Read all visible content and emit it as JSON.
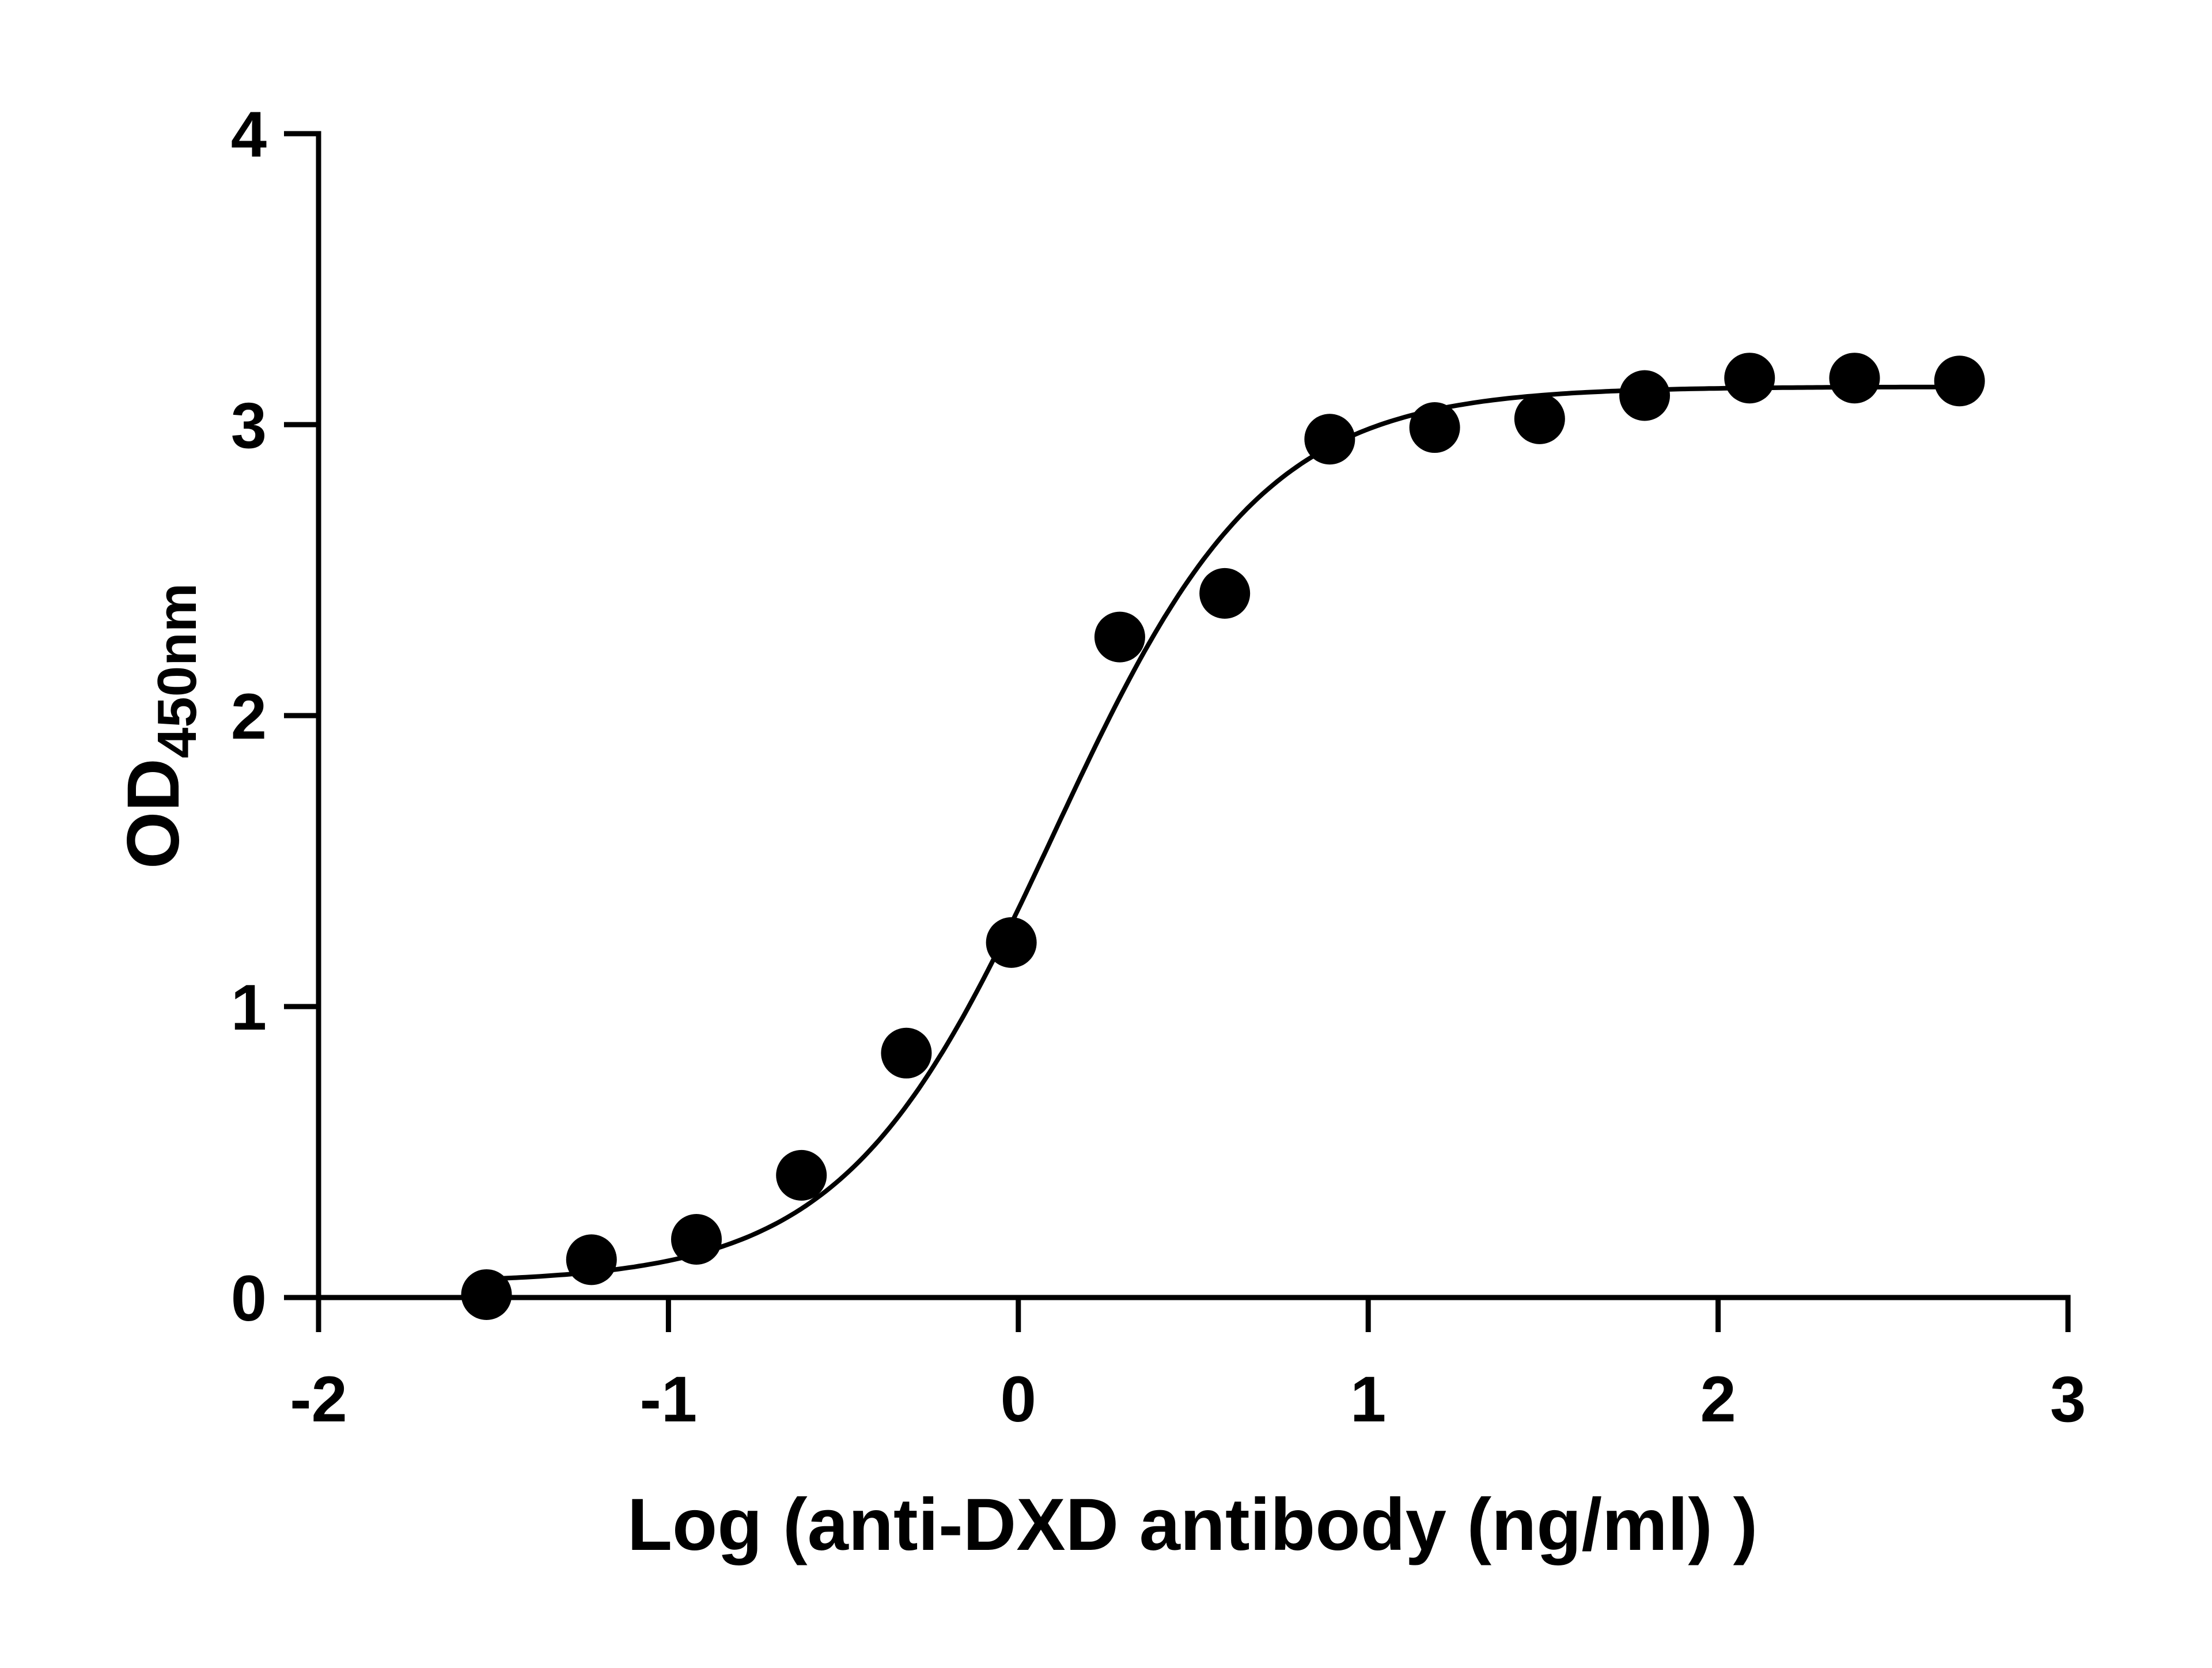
{
  "chart_data": {
    "type": "scatter",
    "title": "",
    "xlabel": "Log (anti-DXD antibody (ng/ml) )",
    "ylabel_main": "OD",
    "ylabel_sub": "450nm",
    "xlim": [
      -2,
      3
    ],
    "ylim": [
      0,
      4
    ],
    "x_ticks": [
      "-2",
      "-1",
      "0",
      "1",
      "2",
      "3"
    ],
    "y_ticks": [
      "0",
      "1",
      "2",
      "3",
      "4"
    ],
    "grid": false,
    "legend": "none",
    "colors": {
      "points": "#000000",
      "curve": "#000000",
      "axes": "#000000"
    },
    "series": [
      {
        "points_x": [
          -1.52,
          -1.22,
          -0.92,
          -0.62,
          -0.32,
          -0.02,
          0.29,
          0.59,
          0.89,
          1.19,
          1.49,
          1.79,
          2.09,
          2.39,
          2.69
        ],
        "points_y": [
          0.01,
          0.13,
          0.2,
          0.42,
          0.84,
          1.22,
          2.27,
          2.42,
          2.95,
          2.99,
          3.02,
          3.1,
          3.16,
          3.16,
          3.15
        ],
        "fit": {
          "model": "4PL",
          "bottom": 0.05,
          "top": 3.13,
          "logEC50": 0.1,
          "hillslope": 1.45
        }
      }
    ]
  }
}
